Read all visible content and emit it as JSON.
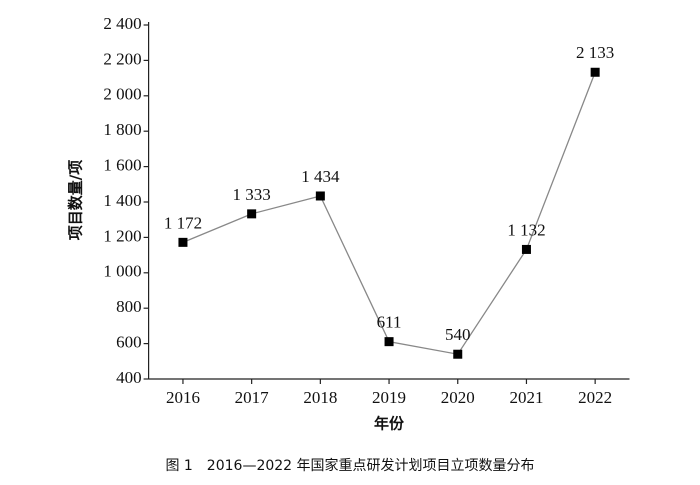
{
  "chart_data": {
    "type": "line",
    "caption": "图 1　2016—2022 年国家重点研发计划项目立项数量分布",
    "x_label": "年份",
    "y_label": "项目数量/项",
    "categories": [
      "2016",
      "2017",
      "2018",
      "2019",
      "2020",
      "2021",
      "2022"
    ],
    "series": [
      {
        "name": "项目数量",
        "color": "#888888",
        "values": [
          1172,
          1333,
          1434,
          611,
          540,
          1132,
          2133
        ],
        "value_labels": [
          "1 172",
          "1 333",
          "1 434",
          "611",
          "540",
          "1 132",
          "2 133"
        ]
      }
    ],
    "ylim": [
      400,
      2400
    ],
    "yticks": [
      400,
      600,
      800,
      {
        "value": 1000,
        "label": "1 000"
      },
      {
        "value": 1200,
        "label": "1 200"
      },
      {
        "value": 1400,
        "label": "1 400"
      },
      {
        "value": 1600,
        "label": "1 600"
      },
      {
        "value": 1800,
        "label": "1 800"
      },
      {
        "value": 2000,
        "label": "2 000"
      },
      {
        "value": 2200,
        "label": "2 200"
      },
      {
        "value": 2400,
        "label": "2 400"
      }
    ],
    "grid": false
  }
}
